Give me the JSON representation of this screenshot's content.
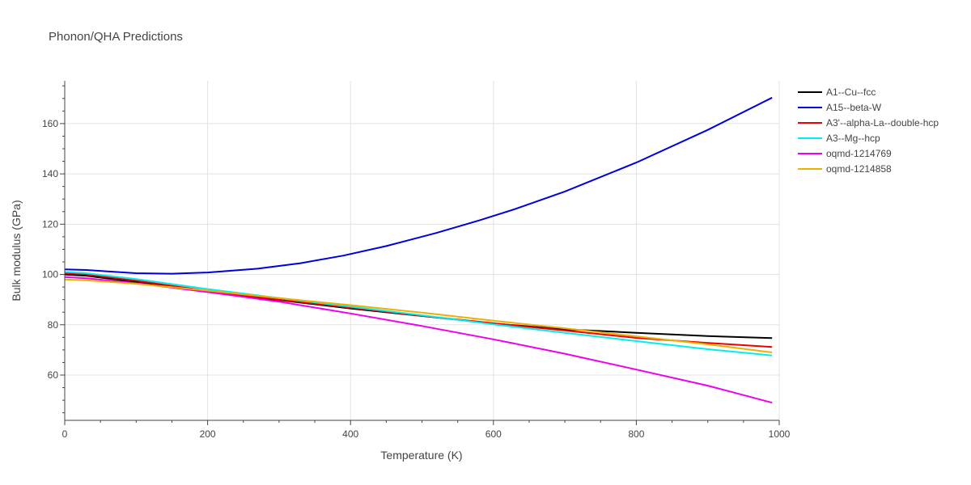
{
  "chart_data": {
    "type": "line",
    "title": "Phonon/QHA Predictions",
    "xlabel": "Temperature (K)",
    "ylabel": "Bulk modulus (GPa)",
    "xlim": [
      0,
      1000
    ],
    "ylim": [
      42,
      177
    ],
    "xticks": [
      0,
      200,
      400,
      600,
      800,
      1000
    ],
    "yticks": [
      60,
      80,
      100,
      120,
      140,
      160
    ],
    "grid": true,
    "legend_position": "top-right, outside plot",
    "series": [
      {
        "name": "A1--Cu--fcc",
        "color": "#000000",
        "x": [
          0,
          30,
          100,
          200,
          300,
          400,
          500,
          600,
          700,
          800,
          900,
          990
        ],
        "y": [
          100.0,
          99.5,
          97.0,
          93.0,
          89.8,
          86.5,
          83.5,
          80.5,
          78.2,
          76.8,
          75.5,
          74.7
        ]
      },
      {
        "name": "A15--beta-W",
        "color": "#0000dd",
        "x": [
          0,
          30,
          100,
          150,
          200,
          270,
          330,
          390,
          450,
          520,
          580,
          630,
          700,
          800,
          900,
          990
        ],
        "y": [
          102.0,
          101.8,
          100.5,
          100.3,
          100.8,
          102.3,
          104.5,
          107.5,
          111.3,
          116.5,
          121.5,
          126.0,
          133.0,
          144.5,
          157.5,
          170.3
        ]
      },
      {
        "name": "A3'--alpha-La--double-hcp",
        "color": "#ee0000",
        "x": [
          0,
          30,
          100,
          200,
          300,
          400,
          500,
          600,
          700,
          800,
          900,
          990
        ],
        "y": [
          100.5,
          100.0,
          97.5,
          93.5,
          90.0,
          86.8,
          83.6,
          80.6,
          77.7,
          74.8,
          72.8,
          71.2
        ]
      },
      {
        "name": "A3--Mg--hcp",
        "color": "#00eeee",
        "x": [
          0,
          30,
          100,
          200,
          300,
          400,
          500,
          600,
          700,
          800,
          900,
          990
        ],
        "y": [
          101.0,
          100.5,
          98.2,
          94.2,
          90.6,
          87.2,
          83.8,
          80.2,
          76.8,
          73.5,
          70.3,
          67.8
        ]
      },
      {
        "name": "oqmd-1214769",
        "color": "#ee00ee",
        "x": [
          0,
          30,
          100,
          200,
          300,
          400,
          500,
          600,
          700,
          800,
          900,
          990
        ],
        "y": [
          99.0,
          98.5,
          96.5,
          93.0,
          89.2,
          84.5,
          79.5,
          74.2,
          68.5,
          62.2,
          55.8,
          49.0
        ]
      },
      {
        "name": "oqmd-1214858",
        "color": "#ebb000",
        "x": [
          0,
          30,
          100,
          200,
          300,
          400,
          500,
          600,
          700,
          800,
          900,
          990
        ],
        "y": [
          98.0,
          97.7,
          96.3,
          93.6,
          90.6,
          87.8,
          84.8,
          81.6,
          78.6,
          75.4,
          72.2,
          69.0
        ]
      }
    ]
  }
}
